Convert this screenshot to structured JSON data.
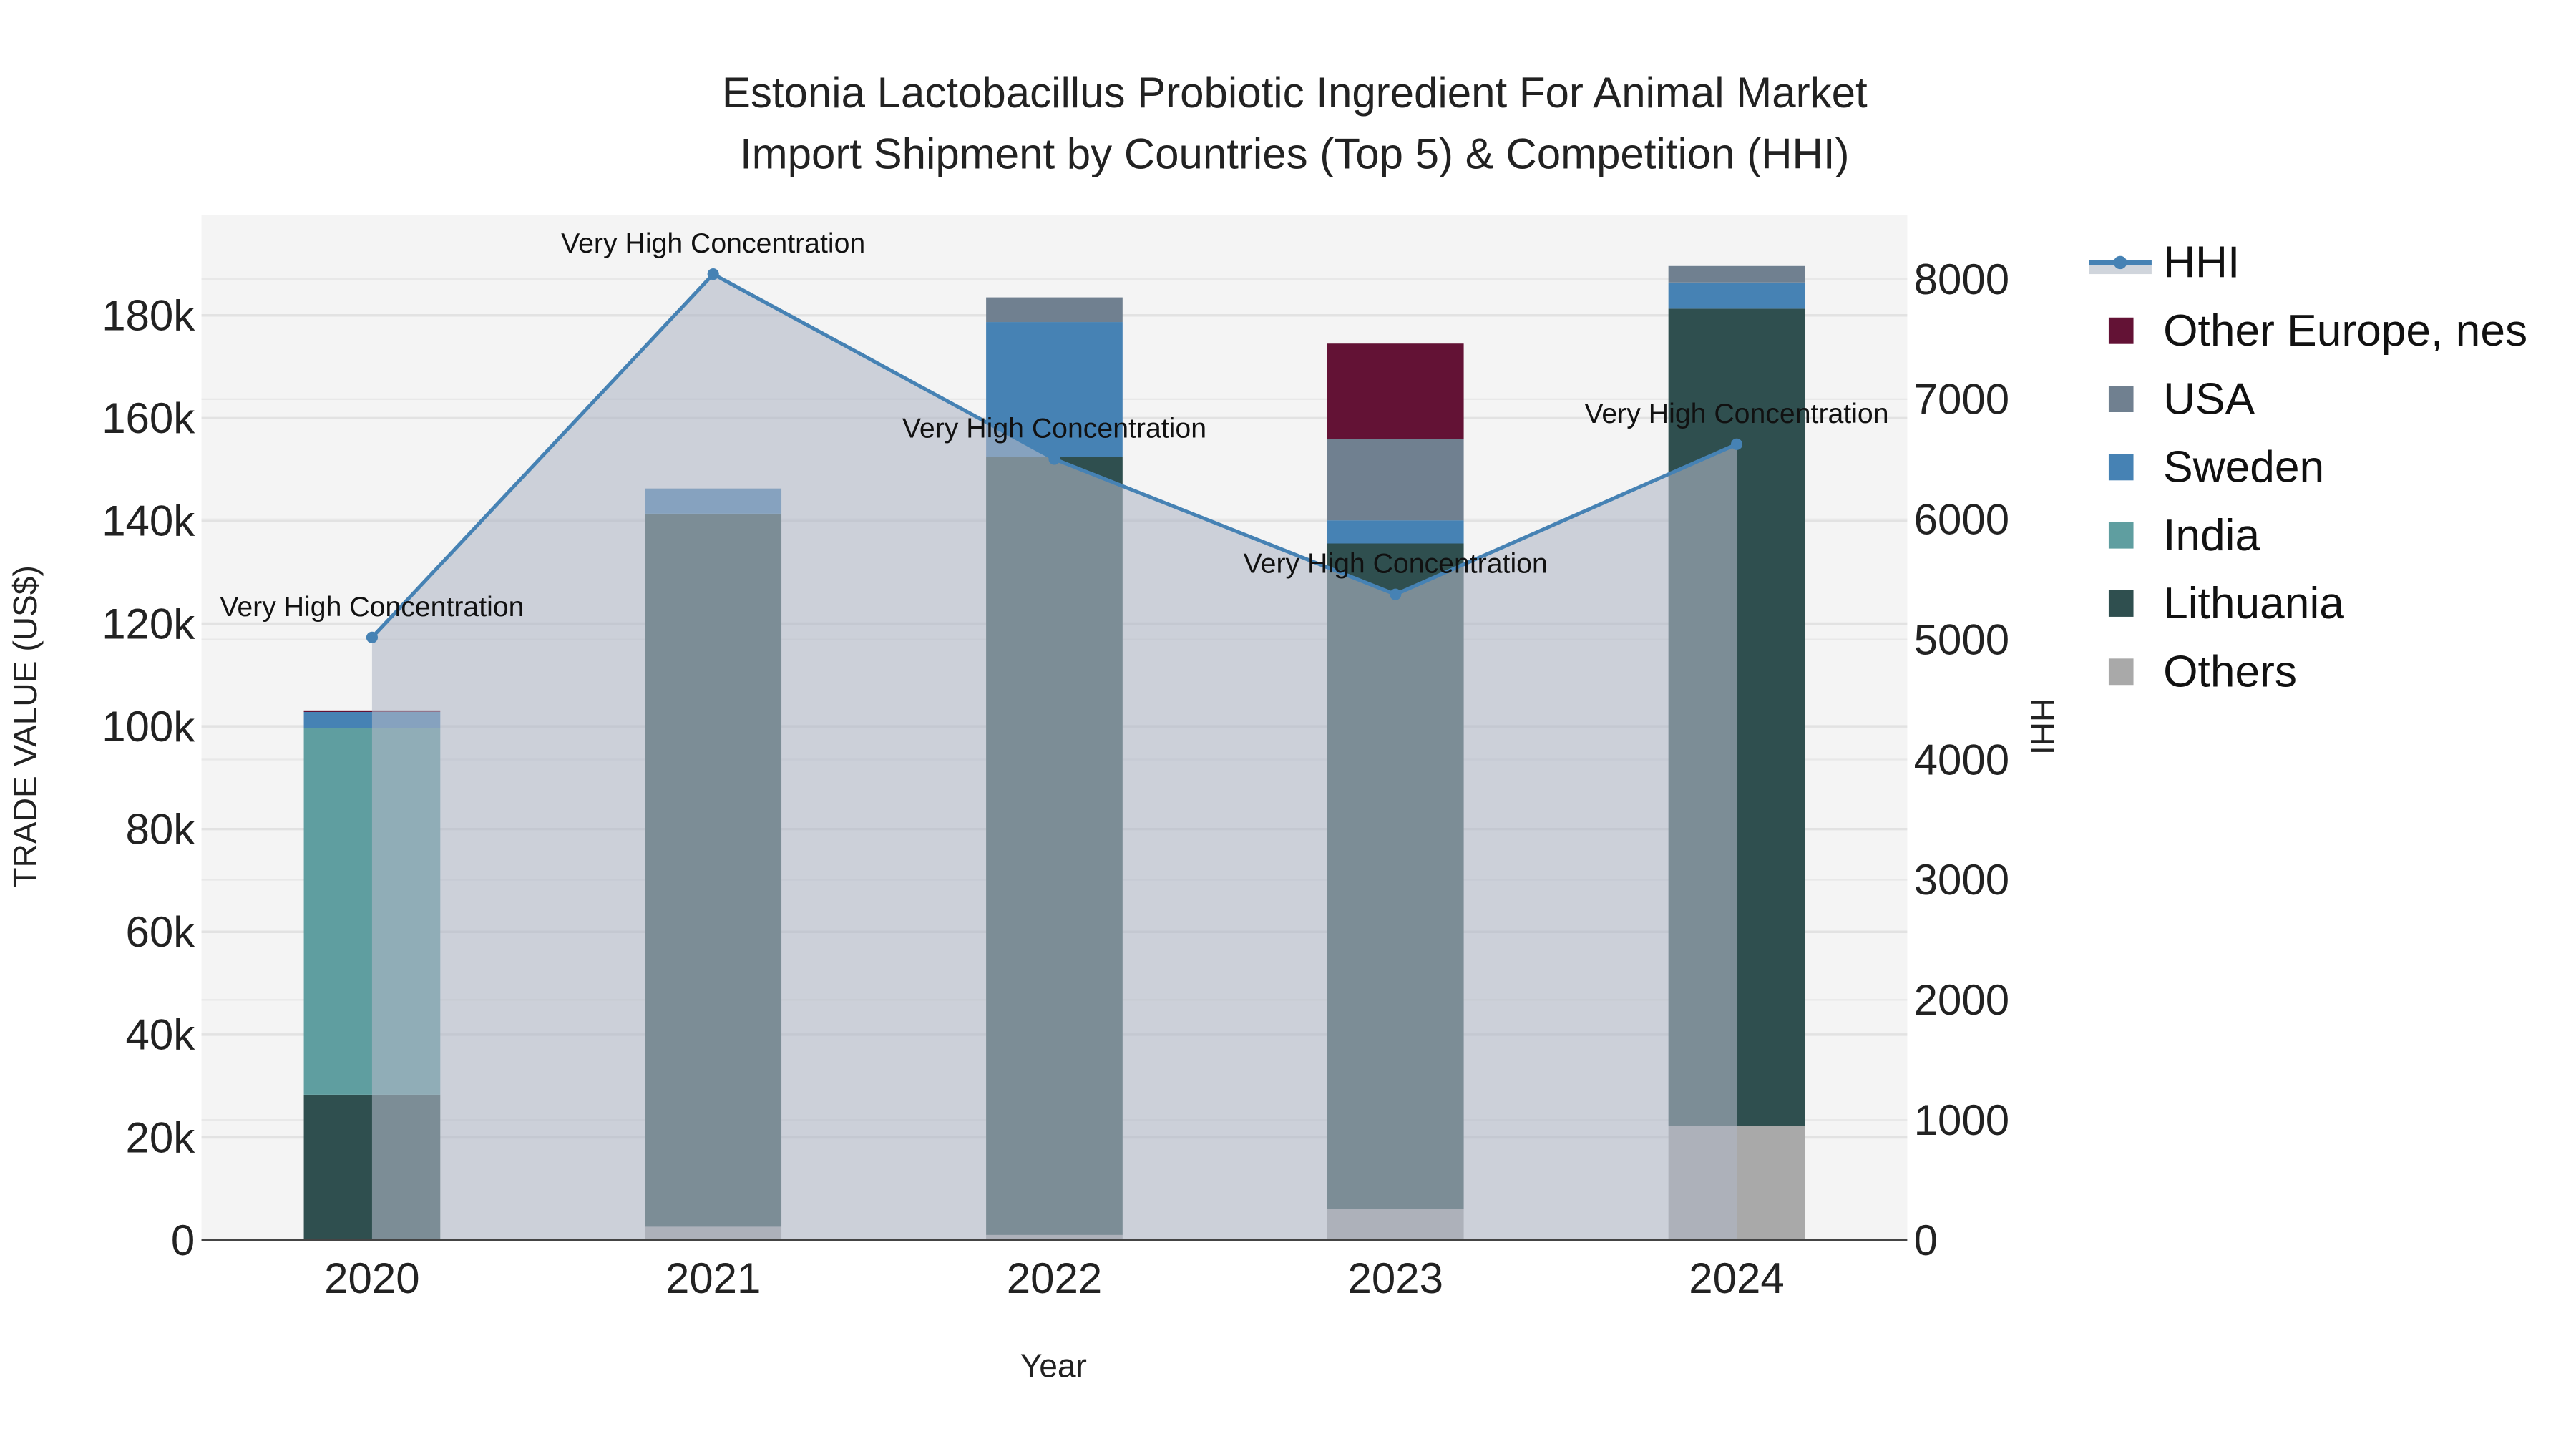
{
  "chart_data": {
    "type": "bar",
    "title_line1": "Estonia Lactobacillus Probiotic Ingredient For Animal Market",
    "title_line2": "Import Shipment by Countries (Top 5) & Competition (HHI)",
    "xlabel": "Year",
    "ylabel": "TRADE VALUE (US$)",
    "y2label": "HHI",
    "categories": [
      "2020",
      "2021",
      "2022",
      "2023",
      "2024"
    ],
    "ylim": [
      0,
      199600
    ],
    "y2lim": [
      0,
      8536
    ],
    "yticks": [
      0,
      20000,
      40000,
      60000,
      80000,
      100000,
      120000,
      140000,
      160000,
      180000
    ],
    "ytick_labels": [
      "0",
      "20k",
      "40k",
      "60k",
      "80k",
      "100k",
      "120k",
      "140k",
      "160k",
      "180k"
    ],
    "y2ticks": [
      0,
      1000,
      2000,
      3000,
      4000,
      5000,
      6000,
      7000,
      8000
    ],
    "y2tick_labels": [
      "0",
      "1000",
      "2000",
      "3000",
      "4000",
      "5000",
      "6000",
      "7000",
      "8000"
    ],
    "grid": true,
    "legend_position": "right",
    "series": [
      {
        "name": "Others",
        "color": "#A9A9A9",
        "values": [
          0,
          2600,
          1000,
          6100,
          22200
        ]
      },
      {
        "name": "Lithuania",
        "color": "#2F4F4F",
        "values": [
          28300,
          138800,
          151400,
          129500,
          159100
        ]
      },
      {
        "name": "India",
        "color": "#5F9EA0",
        "values": [
          71300,
          0,
          0,
          0,
          0
        ]
      },
      {
        "name": "Sweden",
        "color": "#4682B4",
        "values": [
          3200,
          4900,
          26300,
          4500,
          5100
        ]
      },
      {
        "name": "USA",
        "color": "#708090",
        "values": [
          0,
          0,
          4800,
          15800,
          3200
        ]
      },
      {
        "name": "Other Europe, nes",
        "color": "#631235",
        "values": [
          300,
          0,
          0,
          18600,
          0
        ]
      }
    ],
    "hhi": {
      "name": "HHI",
      "color": "#4682B4",
      "values": [
        5017,
        8041,
        6502,
        5375,
        6625
      ],
      "annotations": [
        "Very High Concentration",
        "Very High Concentration",
        "Very High Concentration",
        "Very High Concentration",
        "Very High Concentration"
      ]
    },
    "legend_order": [
      "HHI",
      "Other Europe, nes",
      "USA",
      "Sweden",
      "India",
      "Lithuania",
      "Others"
    ]
  }
}
